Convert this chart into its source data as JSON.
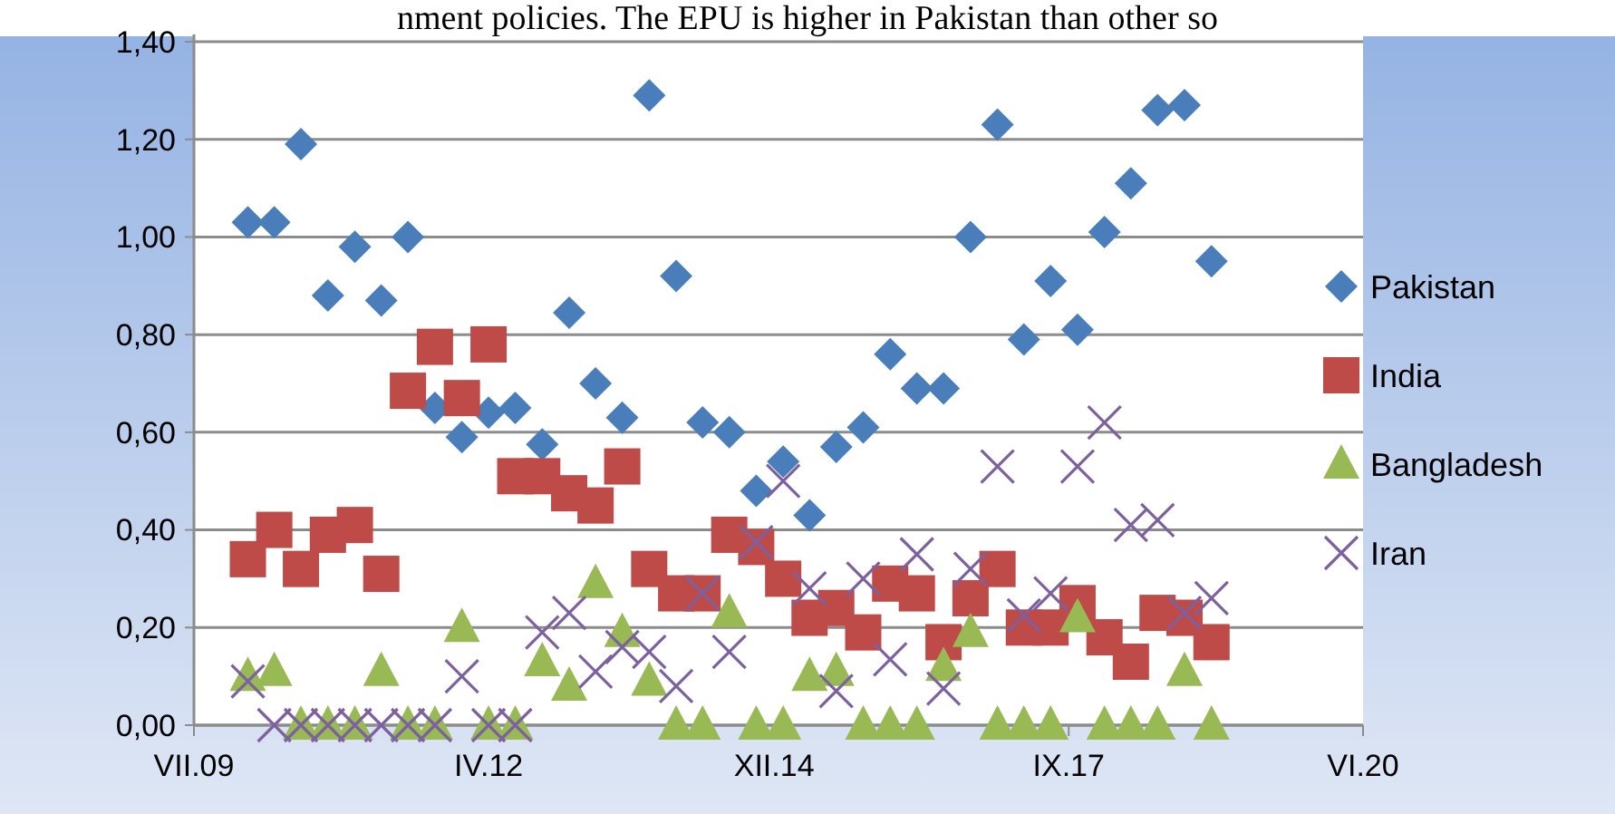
{
  "chart_data": {
    "type": "scatter",
    "annotations": [
      "nment policies. The EPU is higher in Pakistan than other so"
    ],
    "x": [
      "2010-01",
      "2010-04",
      "2010-07",
      "2010-10",
      "2011-01",
      "2011-04",
      "2011-07",
      "2011-10",
      "2012-01",
      "2012-04",
      "2012-07",
      "2012-10",
      "2013-01",
      "2013-04",
      "2013-07",
      "2013-10",
      "2014-01",
      "2014-04",
      "2014-07",
      "2014-10",
      "2015-01",
      "2015-04",
      "2015-07",
      "2015-10",
      "2016-01",
      "2016-04",
      "2016-07",
      "2016-10",
      "2017-01",
      "2017-04",
      "2017-07",
      "2017-10",
      "2018-01",
      "2018-04",
      "2018-07",
      "2018-10",
      "2019-01"
    ],
    "series": [
      {
        "name": "Pakistan",
        "color": "#4a7ebb",
        "marker": "diamond",
        "values": [
          1.03,
          1.03,
          1.19,
          0.88,
          0.98,
          0.87,
          1.0,
          0.65,
          0.59,
          0.64,
          0.65,
          0.575,
          0.845,
          0.7,
          0.63,
          1.29,
          0.92,
          0.62,
          0.6,
          0.48,
          0.54,
          0.43,
          0.57,
          0.61,
          0.76,
          0.69,
          0.69,
          1.0,
          1.23,
          0.79,
          0.91,
          0.81,
          1.01,
          1.11,
          1.26,
          1.27,
          0.95
        ]
      },
      {
        "name": "India",
        "color": "#be4b48",
        "marker": "square",
        "values": [
          0.34,
          0.4,
          0.32,
          0.39,
          0.41,
          0.31,
          0.685,
          0.775,
          0.67,
          0.78,
          0.51,
          0.51,
          0.475,
          0.45,
          0.53,
          0.32,
          0.27,
          0.27,
          0.39,
          0.365,
          0.3,
          0.22,
          0.24,
          0.19,
          0.29,
          0.27,
          0.17,
          0.26,
          0.32,
          0.2,
          0.2,
          0.25,
          0.18,
          0.13,
          0.23,
          0.22,
          0.17
        ]
      },
      {
        "name": "Bangladesh",
        "color": "#98b954",
        "marker": "triangle",
        "values": [
          0.1,
          0.11,
          0,
          0,
          0,
          0.11,
          0,
          0,
          0.2,
          0,
          0,
          0.13,
          0.08,
          0.29,
          0.19,
          0.09,
          0,
          0,
          0.23,
          0,
          0,
          0.1,
          0.11,
          0,
          0,
          0,
          0.12,
          0.19,
          0,
          0,
          0,
          0.22,
          0,
          0,
          0,
          0.11,
          0
        ]
      },
      {
        "name": "Iran",
        "color": "#7d60a0",
        "marker": "cross",
        "values": [
          0.09,
          0,
          0,
          0,
          0,
          0,
          0,
          0,
          0.1,
          0,
          0,
          0.19,
          0.23,
          0.11,
          0.16,
          0.15,
          0.08,
          0.27,
          0.15,
          0.375,
          0.5,
          0.28,
          0.07,
          0.3,
          0.135,
          0.35,
          0.075,
          0.32,
          0.53,
          0.225,
          0.27,
          0.53,
          0.62,
          0.41,
          0.42,
          0.23,
          0.26
        ]
      }
    ],
    "xlim": [
      "2009-07",
      "2020-06"
    ],
    "xticks": [
      {
        "value": "2009-07",
        "label": "VII.09"
      },
      {
        "value": "2012-04",
        "label": "IV.12"
      },
      {
        "value": "2014-12",
        "label": "XII.14"
      },
      {
        "value": "2017-09",
        "label": "IX.17"
      },
      {
        "value": "2020-06",
        "label": "VI.20"
      }
    ],
    "ylim": [
      0,
      1.4
    ],
    "yticks": [
      {
        "value": 0,
        "label": "0,00"
      },
      {
        "value": 0.2,
        "label": "0,20"
      },
      {
        "value": 0.4,
        "label": "0,40"
      },
      {
        "value": 0.6,
        "label": "0,60"
      },
      {
        "value": 0.8,
        "label": "0,80"
      },
      {
        "value": 1,
        "label": "1,00"
      },
      {
        "value": 1.2,
        "label": "1,20"
      },
      {
        "value": 1.4,
        "label": "1,40"
      }
    ],
    "grid": "y",
    "legend": "right"
  }
}
